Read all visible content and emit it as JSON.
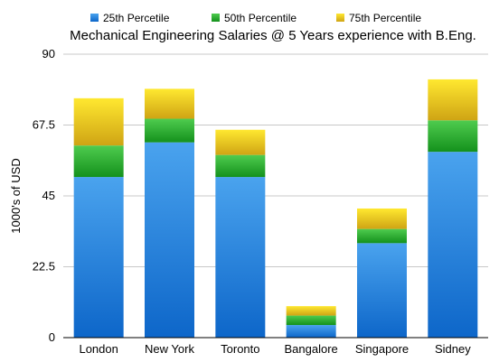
{
  "chart_data": {
    "type": "bar",
    "stacked": true,
    "title": "Mechanical Engineering Salaries @ 5 Years experience with B.Eng.",
    "xlabel": "",
    "ylabel": "1000's of USD",
    "ylim": [
      0,
      90
    ],
    "yticks": [
      "0",
      "22.5",
      "45",
      "67.5",
      "90"
    ],
    "grid": true,
    "legend_position": "top",
    "categories": [
      "London",
      "New York",
      "Toronto",
      "Bangalore",
      "Singapore",
      "Sidney"
    ],
    "series": [
      {
        "name": "25th Percetile",
        "values": [
          51,
          62,
          51,
          4,
          30,
          59
        ],
        "color_light": "#4aa3ee",
        "color_dark": "#0d66c9"
      },
      {
        "name": "50th Percentile",
        "values": [
          10,
          7.5,
          7,
          3,
          4.5,
          10
        ],
        "color_light": "#4fcc4f",
        "color_dark": "#14911c"
      },
      {
        "name": "75th Percentile",
        "values": [
          15,
          9.5,
          8,
          3,
          6.5,
          13
        ],
        "color_light": "#ffe830",
        "color_dark": "#cfa414"
      }
    ]
  }
}
